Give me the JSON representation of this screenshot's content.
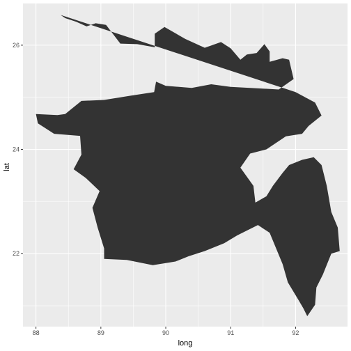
{
  "chart_data": {
    "type": "map",
    "xlabel": "long",
    "ylabel": "lat",
    "xlim": [
      87.8,
      92.8
    ],
    "ylim": [
      20.6,
      26.8
    ],
    "x_ticks": [
      88,
      89,
      90,
      91,
      92
    ],
    "x_tick_labels": [
      "88",
      "89",
      "90",
      "91",
      "92"
    ],
    "y_ticks": [
      22,
      24,
      26
    ],
    "y_tick_labels": [
      "22",
      "24",
      "26"
    ],
    "grid": true,
    "panel_color": "#ebebeb",
    "grid_color": "#ffffff",
    "fill_color": "#333333",
    "outline": [
      [
        88.38,
        26.58
      ],
      [
        88.45,
        26.52
      ],
      [
        88.62,
        26.45
      ],
      [
        88.78,
        26.36
      ],
      [
        88.92,
        26.42
      ],
      [
        89.08,
        26.39
      ],
      [
        89.3,
        26.03
      ],
      [
        89.56,
        26.02
      ],
      [
        89.83,
        25.96
      ],
      [
        89.83,
        26.22
      ],
      [
        89.98,
        26.35
      ],
      [
        90.3,
        26.12
      ],
      [
        90.6,
        25.95
      ],
      [
        90.85,
        26.06
      ],
      [
        91.0,
        25.94
      ],
      [
        91.15,
        25.72
      ],
      [
        91.25,
        25.82
      ],
      [
        91.4,
        25.85
      ],
      [
        91.52,
        26.02
      ],
      [
        91.6,
        25.88
      ],
      [
        91.6,
        25.68
      ],
      [
        91.8,
        25.75
      ],
      [
        91.9,
        25.72
      ],
      [
        91.97,
        25.35
      ],
      [
        91.74,
        25.15
      ],
      [
        91.3,
        25.18
      ],
      [
        91.0,
        25.2
      ],
      [
        90.7,
        25.25
      ],
      [
        90.4,
        25.18
      ],
      [
        90.0,
        25.22
      ],
      [
        89.85,
        25.3
      ],
      [
        89.82,
        25.1
      ],
      [
        89.45,
        25.03
      ],
      [
        89.05,
        24.95
      ],
      [
        88.7,
        24.93
      ],
      [
        88.45,
        24.68
      ],
      [
        88.33,
        24.66
      ],
      [
        88.0,
        24.68
      ],
      [
        88.03,
        24.5
      ],
      [
        88.28,
        24.3
      ],
      [
        88.68,
        24.26
      ],
      [
        88.7,
        23.9
      ],
      [
        88.58,
        23.62
      ],
      [
        88.77,
        23.45
      ],
      [
        88.98,
        23.2
      ],
      [
        88.87,
        22.88
      ],
      [
        88.95,
        22.5
      ],
      [
        89.05,
        22.1
      ],
      [
        89.05,
        21.9
      ],
      [
        89.4,
        21.88
      ],
      [
        89.8,
        21.78
      ],
      [
        90.15,
        21.85
      ],
      [
        90.35,
        21.95
      ],
      [
        90.6,
        22.05
      ],
      [
        90.9,
        22.2
      ],
      [
        91.1,
        22.35
      ],
      [
        91.42,
        22.55
      ],
      [
        91.6,
        22.4
      ],
      [
        91.7,
        22.1
      ],
      [
        91.8,
        21.8
      ],
      [
        91.88,
        21.45
      ],
      [
        92.05,
        21.1
      ],
      [
        92.12,
        20.95
      ],
      [
        92.18,
        20.8
      ],
      [
        92.3,
        21.02
      ],
      [
        92.32,
        21.35
      ],
      [
        92.42,
        21.6
      ],
      [
        92.55,
        22.0
      ],
      [
        92.68,
        22.05
      ],
      [
        92.65,
        22.5
      ],
      [
        92.55,
        22.8
      ],
      [
        92.48,
        23.3
      ],
      [
        92.4,
        23.7
      ],
      [
        92.28,
        23.85
      ],
      [
        92.1,
        23.8
      ],
      [
        91.9,
        23.7
      ],
      [
        91.8,
        23.55
      ],
      [
        91.65,
        23.3
      ],
      [
        91.55,
        23.1
      ],
      [
        91.38,
        22.98
      ],
      [
        91.35,
        23.3
      ],
      [
        91.15,
        23.65
      ],
      [
        91.3,
        23.92
      ],
      [
        91.55,
        24.0
      ],
      [
        91.85,
        24.25
      ],
      [
        92.1,
        24.3
      ],
      [
        92.2,
        24.45
      ],
      [
        92.4,
        24.65
      ],
      [
        92.3,
        24.9
      ],
      [
        92.0,
        25.1
      ]
    ]
  }
}
